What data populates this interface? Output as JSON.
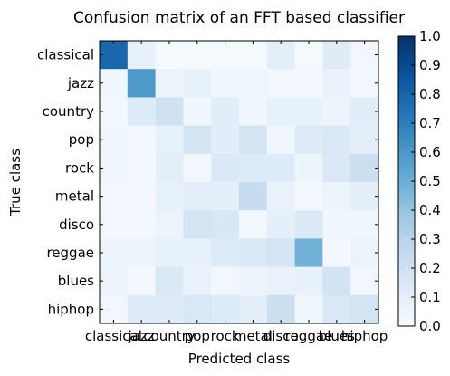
{
  "chart_data": {
    "type": "heatmap",
    "title": "Confusion matrix of an FFT based classifier",
    "xlabel": "Predicted class",
    "ylabel": "True class",
    "x_categories": [
      "classical",
      "jazz",
      "country",
      "pop",
      "rock",
      "metal",
      "disco",
      "reggae",
      "blues",
      "hiphop"
    ],
    "y_categories": [
      "classical",
      "jazz",
      "country",
      "pop",
      "rock",
      "metal",
      "disco",
      "reggae",
      "blues",
      "hiphop"
    ],
    "values": [
      [
        0.79,
        0.08,
        0.01,
        0.01,
        0.01,
        0.01,
        0.1,
        0.01,
        0.12,
        0.03
      ],
      [
        0.04,
        0.59,
        0.06,
        0.08,
        0.04,
        0.04,
        0.02,
        0.02,
        0.07,
        0.03
      ],
      [
        0.02,
        0.13,
        0.2,
        0.04,
        0.11,
        0.04,
        0.08,
        0.08,
        0.05,
        0.11
      ],
      [
        0.04,
        0.02,
        0.08,
        0.18,
        0.11,
        0.18,
        0.04,
        0.12,
        0.14,
        0.1
      ],
      [
        0.04,
        0.02,
        0.1,
        0.03,
        0.14,
        0.13,
        0.13,
        0.05,
        0.14,
        0.22
      ],
      [
        0.02,
        0.02,
        0.08,
        0.1,
        0.09,
        0.24,
        0.07,
        0.02,
        0.05,
        0.1
      ],
      [
        0.02,
        0.02,
        0.06,
        0.18,
        0.16,
        0.03,
        0.09,
        0.14,
        0.04,
        0.04
      ],
      [
        0.05,
        0.05,
        0.08,
        0.08,
        0.13,
        0.14,
        0.17,
        0.48,
        0.02,
        0.06
      ],
      [
        0.05,
        0.02,
        0.14,
        0.07,
        0.03,
        0.06,
        0.07,
        0.08,
        0.19,
        0.03
      ],
      [
        0.03,
        0.12,
        0.12,
        0.15,
        0.13,
        0.1,
        0.22,
        0.04,
        0.14,
        0.18
      ]
    ],
    "colorbar": {
      "range": [
        0.0,
        1.0
      ],
      "ticks": [
        "0.0",
        "0.1",
        "0.2",
        "0.3",
        "0.4",
        "0.5",
        "0.6",
        "0.7",
        "0.8",
        "0.9",
        "1.0"
      ]
    },
    "colormap": [
      "#f7fbff",
      "#deebf7",
      "#c6dbef",
      "#9ecae1",
      "#6baed6",
      "#4292c6",
      "#2171b5",
      "#08519c",
      "#08306b"
    ]
  }
}
